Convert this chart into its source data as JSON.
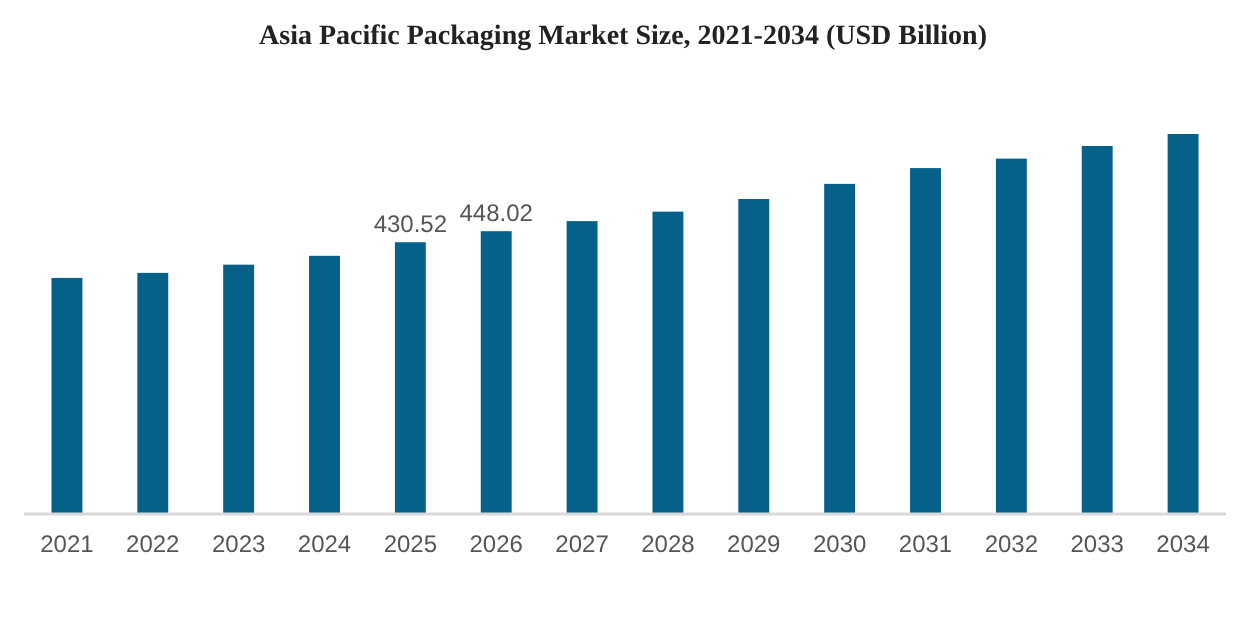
{
  "chart_data": {
    "type": "bar",
    "title": "Asia Pacific Packaging Market Size, 2021-2034 (USD Billion)",
    "categories": [
      "2021",
      "2022",
      "2023",
      "2024",
      "2025",
      "2026",
      "2027",
      "2028",
      "2029",
      "2030",
      "2031",
      "2032",
      "2033",
      "2034"
    ],
    "values": [
      374,
      382,
      395,
      409,
      430.52,
      448.02,
      464,
      479,
      499,
      523,
      548,
      563,
      583,
      602
    ],
    "value_labels": [
      null,
      null,
      null,
      null,
      "430.52",
      "448.02",
      null,
      null,
      null,
      null,
      null,
      null,
      null,
      null
    ],
    "color": "#05618a",
    "tick_labels": "x"
  }
}
